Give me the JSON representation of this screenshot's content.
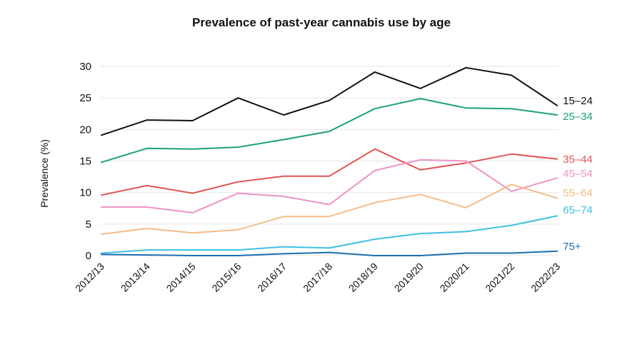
{
  "chart_data": {
    "type": "line",
    "title": "Prevalence of past-year cannabis use by age",
    "xlabel": "",
    "ylabel": "Prevalence (%)",
    "ylim": [
      0,
      30
    ],
    "yticks": [
      0,
      5,
      10,
      15,
      20,
      25,
      30
    ],
    "grid": "horizontal",
    "legend": "direct labels at right end of lines",
    "categories": [
      "2012/13",
      "2013/14",
      "2014/15",
      "2015/16",
      "2016/17",
      "2017/18",
      "2018/19",
      "2019/20",
      "2020/21",
      "2021/22",
      "2022/23"
    ],
    "series": [
      {
        "name": "15–24",
        "color": "#111111",
        "values": [
          19.1,
          21.5,
          21.4,
          25.0,
          22.3,
          24.6,
          29.1,
          26.5,
          29.8,
          28.6,
          23.8
        ]
      },
      {
        "name": "25–34",
        "color": "#1aa36f",
        "values": [
          14.8,
          17.0,
          16.9,
          17.2,
          18.4,
          19.7,
          23.3,
          24.9,
          23.4,
          23.3,
          22.3
        ]
      },
      {
        "name": "35–44",
        "color": "#e05555",
        "values": [
          9.6,
          11.1,
          9.9,
          11.7,
          12.6,
          12.6,
          16.9,
          13.6,
          14.7,
          16.1,
          15.3
        ]
      },
      {
        "name": "45–54",
        "color": "#ee92c4",
        "values": [
          7.7,
          7.7,
          6.8,
          9.9,
          9.4,
          8.1,
          13.5,
          15.2,
          15.0,
          10.2,
          12.3
        ]
      },
      {
        "name": "55–64",
        "color": "#f5bd88",
        "values": [
          3.4,
          4.3,
          3.6,
          4.1,
          6.2,
          6.2,
          8.4,
          9.7,
          7.6,
          11.3,
          9.1
        ]
      },
      {
        "name": "65–74",
        "color": "#3fc0e0",
        "values": [
          0.4,
          0.9,
          0.9,
          0.9,
          1.4,
          1.2,
          2.6,
          3.5,
          3.8,
          4.8,
          6.3
        ]
      },
      {
        "name": "75+",
        "color": "#1a6faf",
        "values": [
          0.2,
          0.1,
          0.0,
          0.0,
          0.3,
          0.5,
          0.0,
          0.0,
          0.4,
          0.4,
          0.7
        ]
      }
    ]
  }
}
